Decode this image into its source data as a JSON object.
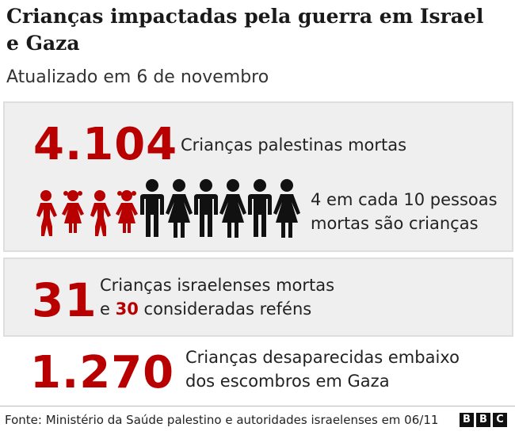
{
  "title": "Crianças impactadas pela guerra em Israel e Gaza",
  "subtitle": "Atualizado em 6 de novembro",
  "stats": {
    "palestinian_children": {
      "number": "4.104",
      "label": "Crianças palestinas mortas"
    },
    "ratio": {
      "line1": "4 em cada 10 pessoas",
      "line2": "mortas são crianças",
      "children_count": 4,
      "adults_count": 6
    },
    "israeli_children": {
      "number": "31",
      "line1": "Crianças israelenses mortas",
      "line2_prefix": "e ",
      "hostages_number": "30",
      "line2_suffix": " consideradas reféns"
    },
    "missing": {
      "number": "1.270",
      "line1": "Crianças desaparecidas embaixo",
      "line2": "dos escombros em Gaza"
    }
  },
  "footer": {
    "source": "Fonte: Ministério da Saúde palestino e autoridades israelenses em 06/11",
    "logo_letters": [
      "B",
      "B",
      "C"
    ]
  },
  "colors": {
    "accent": "#b80000",
    "panel": "#efefef",
    "adult_figure": "#111111"
  },
  "icons": {
    "child": "child-figure-icon",
    "adult_male": "adult-male-figure-icon",
    "adult_female": "adult-female-figure-icon"
  }
}
